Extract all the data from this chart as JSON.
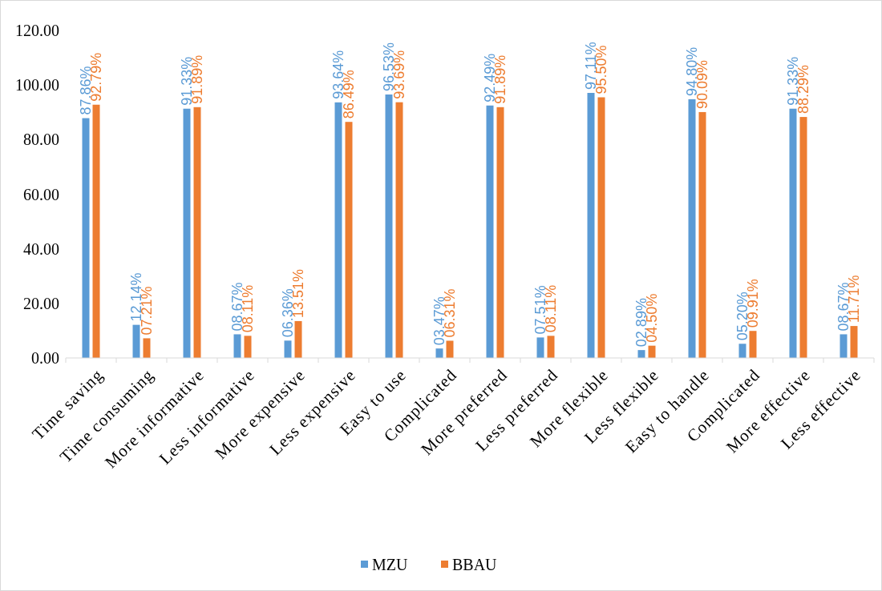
{
  "chart_data": {
    "type": "bar",
    "categories": [
      "Time saving",
      "Time consuming",
      "More informative",
      "Less informative",
      "More expensive",
      "Less expensive",
      "Easy to use",
      "Complicated",
      "More preferred",
      "Less preferred",
      "More flexible",
      "Less flexible",
      "Easy to handle",
      "Complicated",
      "More effective",
      "Less effective"
    ],
    "series": [
      {
        "name": "MZU",
        "color": "#5b9bd5",
        "values": [
          87.86,
          12.14,
          91.33,
          8.67,
          6.36,
          93.64,
          96.53,
          3.47,
          92.49,
          7.51,
          97.11,
          2.89,
          94.8,
          5.2,
          91.33,
          8.67
        ],
        "value_labels": [
          "87.86%",
          "12.14%",
          "91.33%",
          "08.67%",
          "06.36%",
          "93.64%",
          "96.53%",
          "03.47%",
          "92.49%",
          "07.51%",
          "97.11%",
          "02.89%",
          "94.80%",
          "05.20%",
          "91.33%",
          "08.67%"
        ]
      },
      {
        "name": "BBAU",
        "color": "#ed7d31",
        "values": [
          92.79,
          7.21,
          91.89,
          8.11,
          13.51,
          86.49,
          93.69,
          6.31,
          91.89,
          8.11,
          95.5,
          4.5,
          90.09,
          9.91,
          88.29,
          11.71
        ],
        "value_labels": [
          "92.79%",
          "07.21%",
          "91.89%",
          "08.11%",
          "13.51%",
          "86.49%",
          "93.69%",
          "06.31%",
          "91.89%",
          "08.11%",
          "95.50%",
          "04.50%",
          "90.09%",
          "09.91%",
          "88.29%",
          "11.71%"
        ]
      }
    ],
    "ylim": [
      0,
      120
    ],
    "yticks": [
      {
        "value": 0,
        "label": "0.00"
      },
      {
        "value": 20,
        "label": "20.00"
      },
      {
        "value": 40,
        "label": "40.00"
      },
      {
        "value": 60,
        "label": "60.00"
      },
      {
        "value": 80,
        "label": "80.00"
      },
      {
        "value": 100,
        "label": "100.00"
      },
      {
        "value": 120,
        "label": "120.00"
      }
    ],
    "grid": false,
    "legend": "bottom"
  }
}
